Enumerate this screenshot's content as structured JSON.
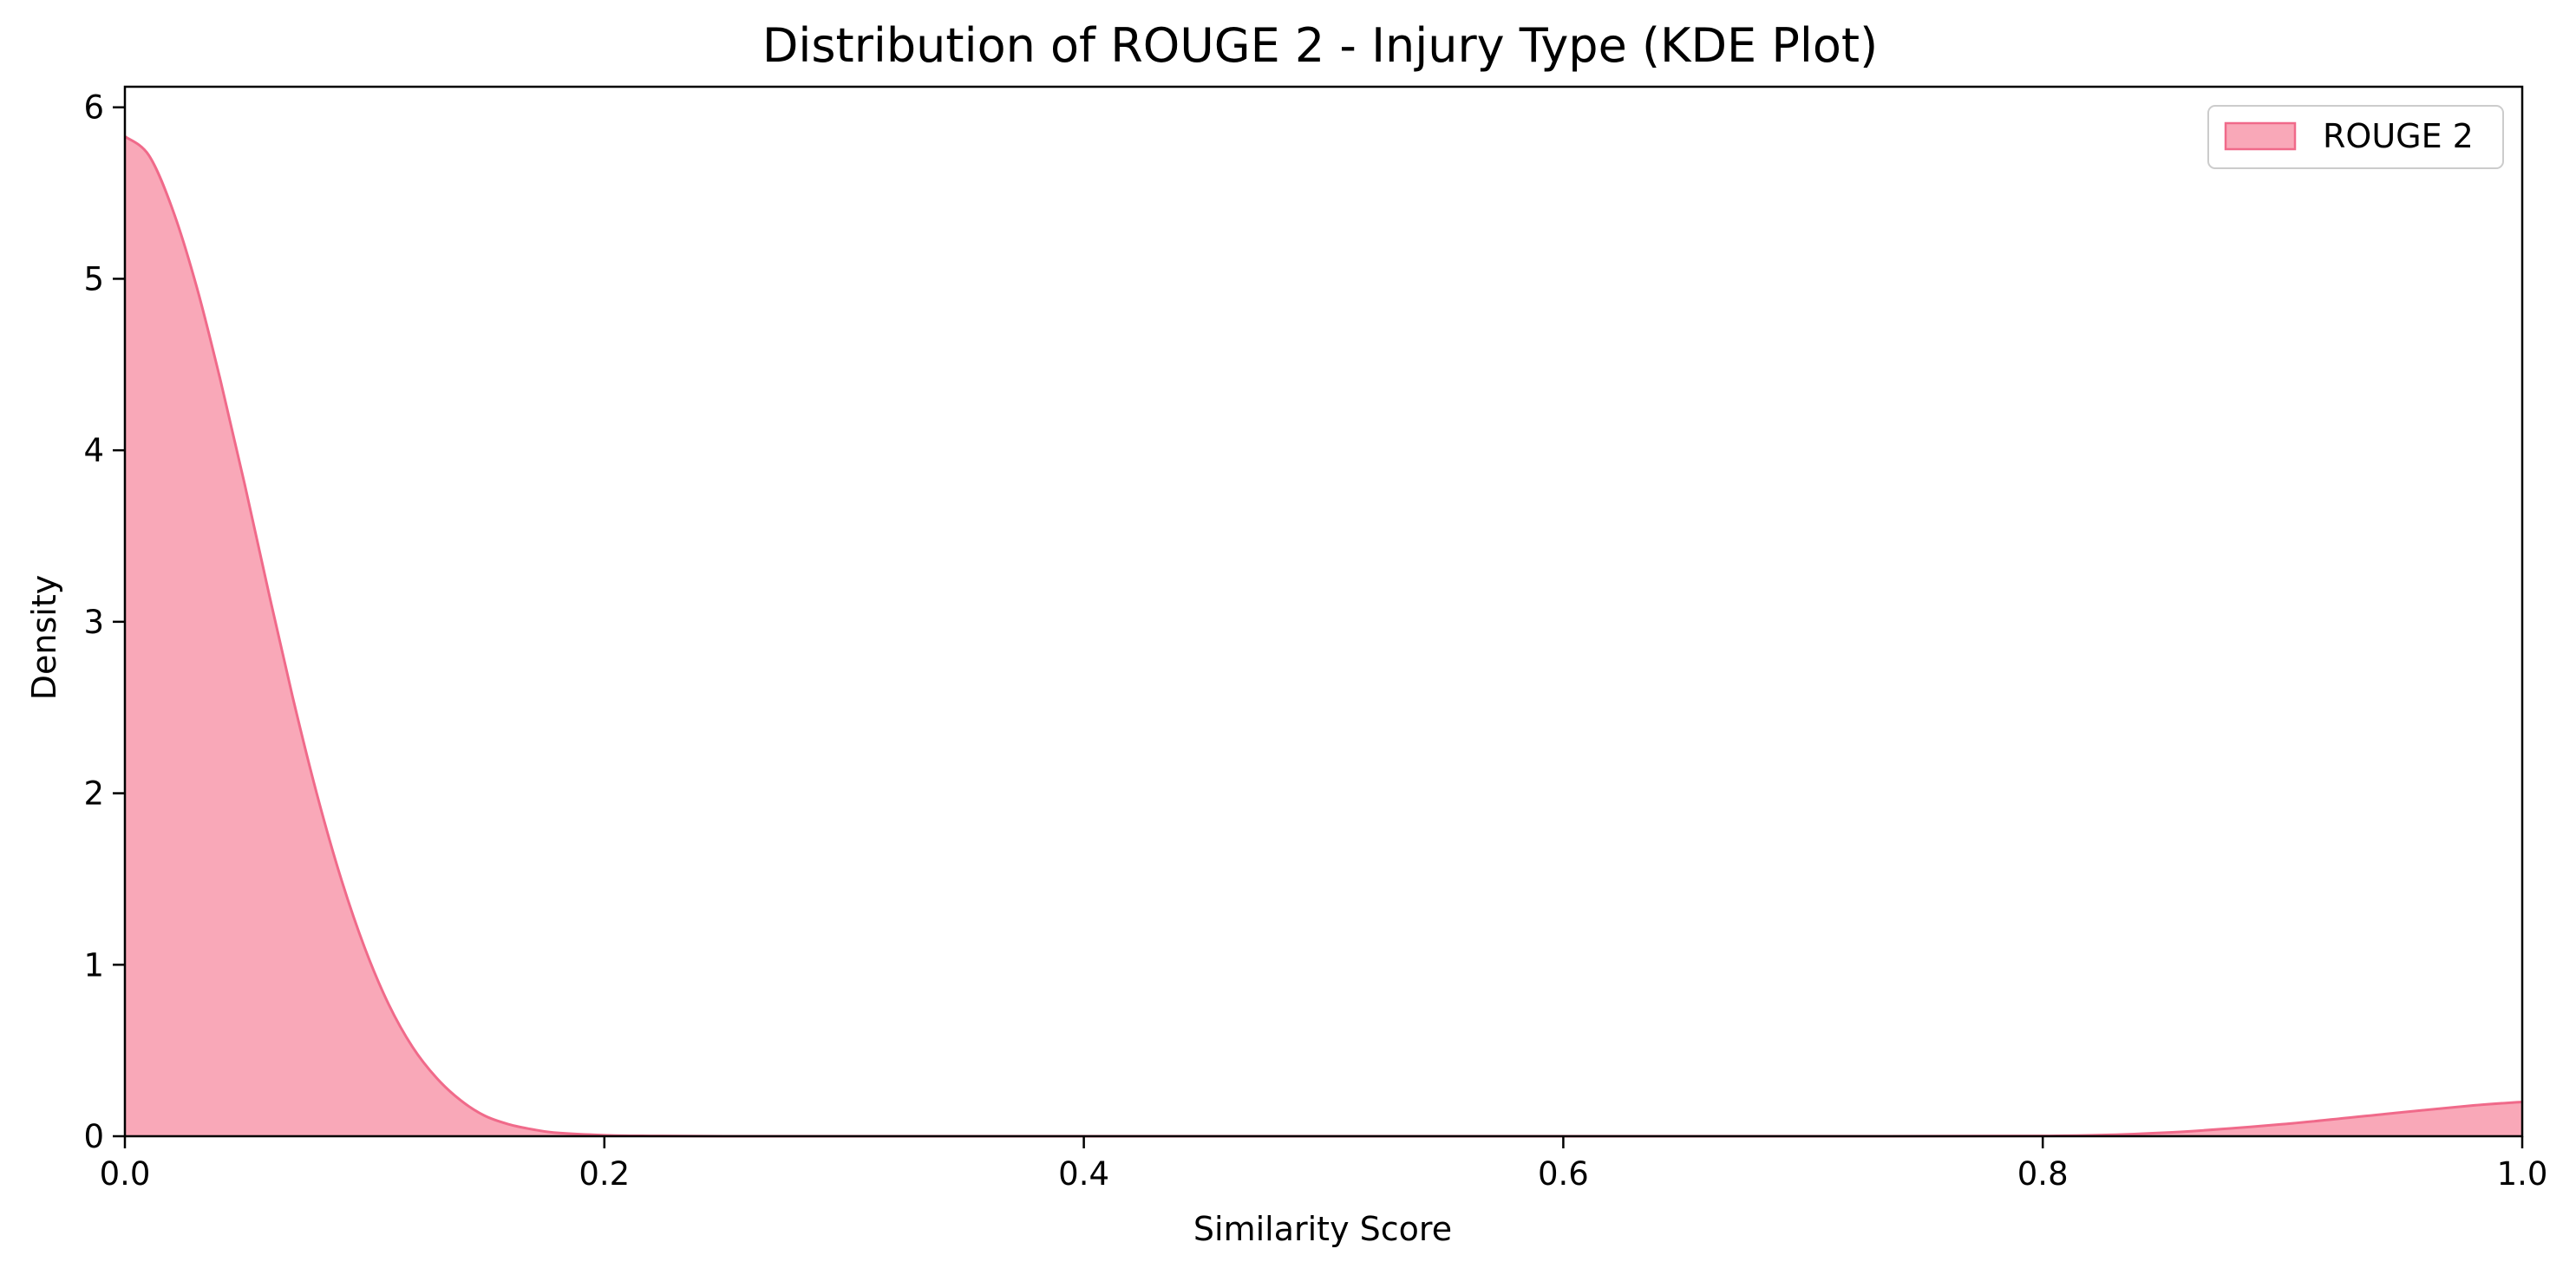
{
  "chart_data": {
    "type": "area",
    "title": "Distribution of ROUGE 2 - Injury Type (KDE Plot)",
    "xlabel": "Similarity Score",
    "ylabel": "Density",
    "xlim": [
      0.0,
      1.0
    ],
    "ylim": [
      0,
      6.12
    ],
    "xticks": [
      0.0,
      0.2,
      0.4,
      0.6,
      0.8,
      1.0
    ],
    "xtick_labels": [
      "0.0",
      "0.2",
      "0.4",
      "0.6",
      "0.8",
      "1.0"
    ],
    "yticks": [
      0,
      1,
      2,
      3,
      4,
      5,
      6
    ],
    "ytick_labels": [
      "0",
      "1",
      "2",
      "3",
      "4",
      "5",
      "6"
    ],
    "grid": false,
    "legend_position": "top-right",
    "series": [
      {
        "name": "ROUGE 2",
        "fill_color": "#f9a8b8",
        "line_color": "#f06a8a",
        "x": [
          0.0,
          0.01,
          0.02,
          0.03,
          0.04,
          0.05,
          0.06,
          0.07,
          0.08,
          0.09,
          0.1,
          0.11,
          0.12,
          0.13,
          0.14,
          0.15,
          0.16,
          0.17,
          0.18,
          0.2,
          0.22,
          0.25,
          0.3,
          0.4,
          0.5,
          0.6,
          0.7,
          0.8,
          0.85,
          0.9,
          0.95,
          0.98,
          1.0
        ],
        "y": [
          5.83,
          5.72,
          5.4,
          4.95,
          4.4,
          3.8,
          3.17,
          2.56,
          2.0,
          1.51,
          1.1,
          0.77,
          0.52,
          0.34,
          0.21,
          0.12,
          0.07,
          0.04,
          0.02,
          0.006,
          0.002,
          0.0,
          0.0,
          0.0,
          0.0,
          0.0,
          0.0,
          0.002,
          0.02,
          0.07,
          0.14,
          0.18,
          0.2
        ]
      }
    ]
  }
}
